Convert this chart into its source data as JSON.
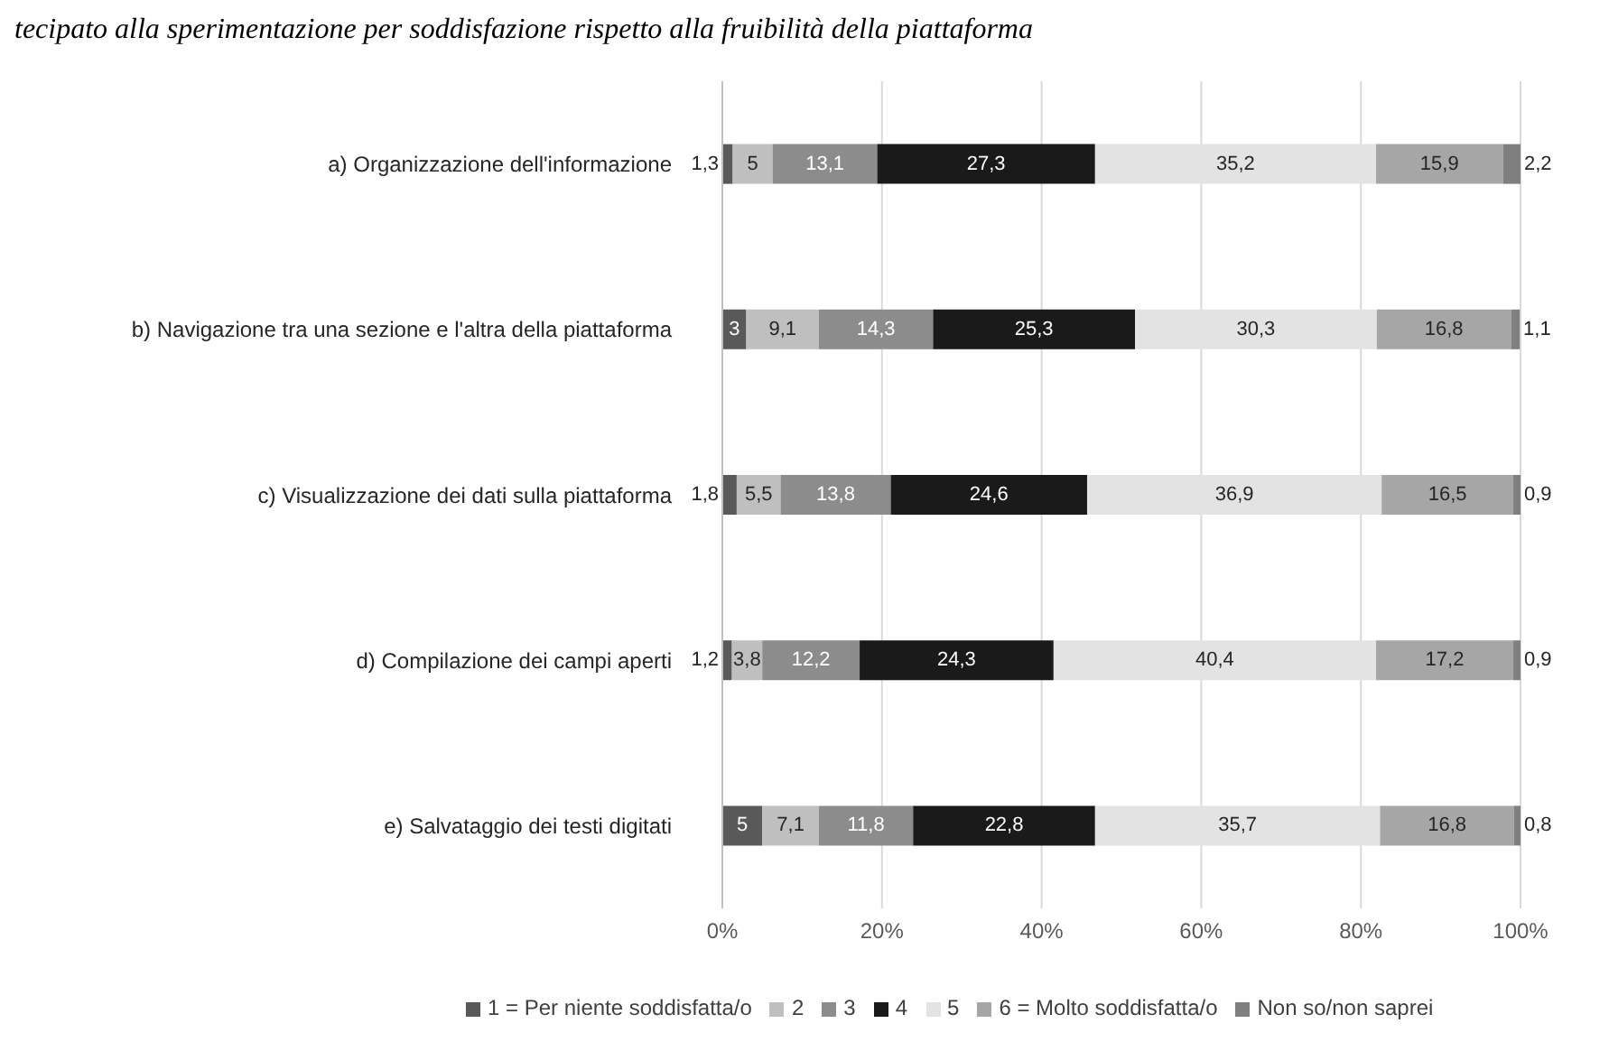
{
  "chart_data": {
    "type": "bar",
    "orientation": "horizontal",
    "stacked": true,
    "title": "tecipato alla sperimentazione per soddisfazione rispetto alla fruibilità della piattaforma",
    "categories": [
      "a)   Organizzazione dell'informazione",
      "b)   Navigazione tra una sezione e l'altra della piattaforma",
      "c)   Visualizzazione dei dati sulla piattaforma",
      "d)   Compilazione dei campi aperti",
      "e)   Salvataggio dei testi digitati"
    ],
    "series": [
      {
        "name": "1 = Per niente soddisfatta/o",
        "color": "#595959",
        "values": [
          1.3,
          3,
          1.8,
          1.2,
          5
        ],
        "value_labels": [
          "1,3",
          "3",
          "1,8",
          "1,2",
          "5"
        ]
      },
      {
        "name": "2",
        "color": "#bfbfbf",
        "values": [
          5,
          9.1,
          5.5,
          3.8,
          7.1
        ],
        "value_labels": [
          "5",
          "9,1",
          "5,5",
          "3,8",
          "7,1"
        ]
      },
      {
        "name": "3",
        "color": "#8c8c8c",
        "values": [
          13.1,
          14.3,
          13.8,
          12.2,
          11.8
        ],
        "value_labels": [
          "13,1",
          "14,3",
          "13,8",
          "12,2",
          "11,8"
        ]
      },
      {
        "name": "4",
        "color": "#1a1a1a",
        "values": [
          27.3,
          25.3,
          24.6,
          24.3,
          22.8
        ],
        "value_labels": [
          "27,3",
          "25,3",
          "24,6",
          "24,3",
          "22,8"
        ]
      },
      {
        "name": "5",
        "color": "#e3e3e3",
        "values": [
          35.2,
          30.3,
          36.9,
          40.4,
          35.7
        ],
        "value_labels": [
          "35,2",
          "30,3",
          "36,9",
          "40,4",
          "35,7"
        ]
      },
      {
        "name": "6 = Molto soddisfatta/o",
        "color": "#a6a6a6",
        "values": [
          15.9,
          16.8,
          16.5,
          17.2,
          16.8
        ],
        "value_labels": [
          "15,9",
          "16,8",
          "16,5",
          "17,2",
          "16,8"
        ]
      },
      {
        "name": "Non so/non saprei",
        "color": "#7f7f7f",
        "values": [
          2.2,
          1.1,
          0.9,
          0.9,
          0.8
        ],
        "value_labels": [
          "2,2",
          "1,1",
          "0,9",
          "0,9",
          "0,8"
        ]
      }
    ],
    "xlim": [
      0,
      100
    ],
    "xticks": [
      {
        "value": 0,
        "label": "0%"
      },
      {
        "value": 20,
        "label": "20%"
      },
      {
        "value": 40,
        "label": "40%"
      },
      {
        "value": 60,
        "label": "60%"
      },
      {
        "value": 80,
        "label": "80%"
      },
      {
        "value": 100,
        "label": "100%"
      }
    ],
    "grid": "x",
    "legend": "bottom"
  }
}
